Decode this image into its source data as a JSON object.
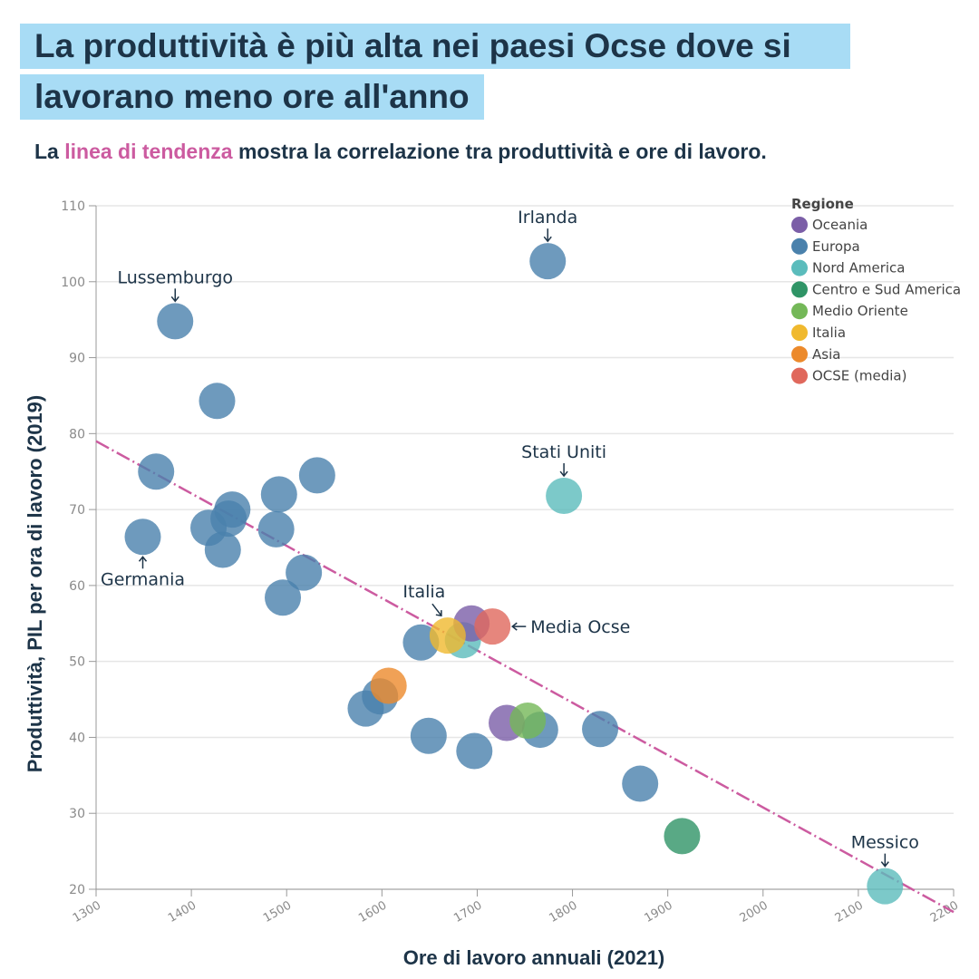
{
  "title_line1": "La produttività è più alta nei paesi Ocse dove si",
  "title_line2": "lavorano meno ore all'anno",
  "subtitle": {
    "pre": "La ",
    "highlight": "linea di tendenza",
    "post": " mostra la correlazione tra produttività e ore di lavoro."
  },
  "chart_data": {
    "type": "scatter",
    "xlabel": "Ore di lavoro annuali (2021)",
    "ylabel": "Produttività, PIL per ora di lavoro (2019)",
    "xlim": [
      1300,
      2200
    ],
    "ylim": [
      20,
      110
    ],
    "xticks": [
      1300,
      1400,
      1500,
      1600,
      1700,
      1800,
      1900,
      2000,
      2100,
      2200
    ],
    "yticks": [
      20,
      30,
      40,
      50,
      60,
      70,
      80,
      90,
      100,
      110
    ],
    "grid": "horizontal",
    "legend_title": "Regione",
    "legend_position": "top-right",
    "regions": [
      {
        "name": "Oceania",
        "color": "#7b5ea7"
      },
      {
        "name": "Europa",
        "color": "#4a81ac"
      },
      {
        "name": "Nord America",
        "color": "#5bbcbc"
      },
      {
        "name": "Centro e Sud America",
        "color": "#2f9466"
      },
      {
        "name": "Medio Oriente",
        "color": "#74b858"
      },
      {
        "name": "Italia",
        "color": "#f0b92e"
      },
      {
        "name": "Asia",
        "color": "#ec8a2c"
      },
      {
        "name": "OCSE (media)",
        "color": "#e0685c"
      }
    ],
    "points": [
      {
        "x": 1774,
        "y": 102.7,
        "region": "Europa",
        "label": "Irlanda"
      },
      {
        "x": 1383,
        "y": 94.8,
        "region": "Europa",
        "label": "Lussemburgo"
      },
      {
        "x": 1427,
        "y": 84.3,
        "region": "Europa"
      },
      {
        "x": 1363,
        "y": 75.0,
        "region": "Europa"
      },
      {
        "x": 1532,
        "y": 74.5,
        "region": "Europa"
      },
      {
        "x": 1492,
        "y": 72.0,
        "region": "Europa"
      },
      {
        "x": 1443,
        "y": 70.0,
        "region": "Europa"
      },
      {
        "x": 1439,
        "y": 68.8,
        "region": "Europa"
      },
      {
        "x": 1418,
        "y": 67.6,
        "region": "Europa"
      },
      {
        "x": 1489,
        "y": 67.4,
        "region": "Europa"
      },
      {
        "x": 1349,
        "y": 66.4,
        "region": "Europa",
        "label": "Germania"
      },
      {
        "x": 1433,
        "y": 64.7,
        "region": "Europa"
      },
      {
        "x": 1518,
        "y": 61.7,
        "region": "Europa"
      },
      {
        "x": 1496,
        "y": 58.4,
        "region": "Europa"
      },
      {
        "x": 1641,
        "y": 52.5,
        "region": "Europa"
      },
      {
        "x": 1598,
        "y": 45.4,
        "region": "Europa"
      },
      {
        "x": 1583,
        "y": 43.8,
        "region": "Europa"
      },
      {
        "x": 1649,
        "y": 40.2,
        "region": "Europa"
      },
      {
        "x": 1697,
        "y": 38.2,
        "region": "Europa"
      },
      {
        "x": 1766,
        "y": 41.0,
        "region": "Europa"
      },
      {
        "x": 1829,
        "y": 41.1,
        "region": "Europa"
      },
      {
        "x": 1871,
        "y": 33.9,
        "region": "Europa"
      },
      {
        "x": 1791,
        "y": 71.8,
        "region": "Nord America",
        "label": "Stati Uniti"
      },
      {
        "x": 1685,
        "y": 52.8,
        "region": "Nord America"
      },
      {
        "x": 2128,
        "y": 20.4,
        "region": "Nord America",
        "label": "Messico"
      },
      {
        "x": 1694,
        "y": 55.0,
        "region": "Oceania"
      },
      {
        "x": 1731,
        "y": 41.9,
        "region": "Oceania"
      },
      {
        "x": 1753,
        "y": 42.2,
        "region": "Medio Oriente"
      },
      {
        "x": 1669,
        "y": 53.4,
        "region": "Italia",
        "label": "Italia"
      },
      {
        "x": 1607,
        "y": 46.8,
        "region": "Asia"
      },
      {
        "x": 1716,
        "y": 54.6,
        "region": "OCSE (media)",
        "label": "Media Ocse"
      },
      {
        "x": 1915,
        "y": 27.0,
        "region": "Centro e Sud America"
      }
    ],
    "trendline": {
      "x": [
        1300,
        2200
      ],
      "y": [
        79.0,
        17.0
      ],
      "color": "#cc5ba0"
    }
  }
}
